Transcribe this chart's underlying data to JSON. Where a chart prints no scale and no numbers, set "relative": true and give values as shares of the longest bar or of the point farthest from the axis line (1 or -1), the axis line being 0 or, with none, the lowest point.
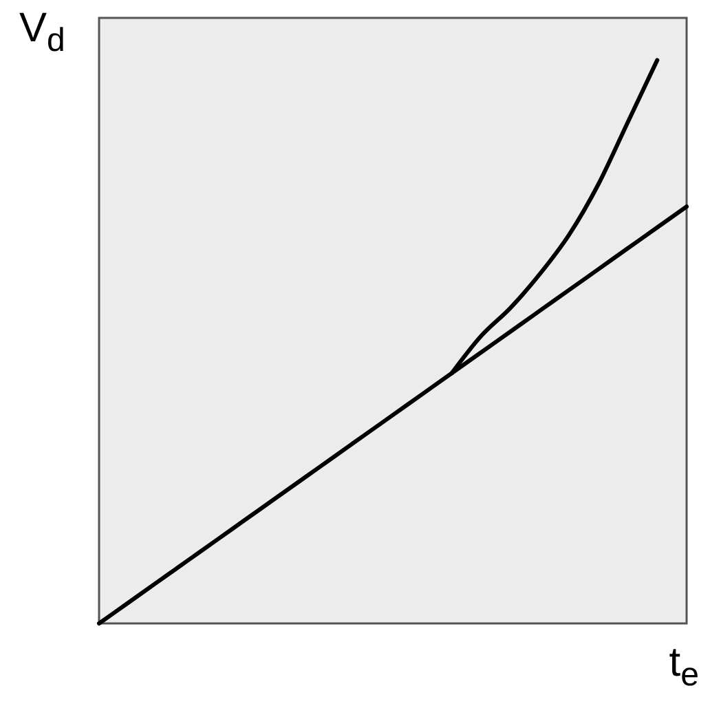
{
  "chart_data": {
    "type": "line",
    "relative": true,
    "xlabel": "t$_{e}$",
    "ylabel": "V$_{d}$",
    "categories": [
      null,
      null,
      null,
      null,
      null,
      null,
      null,
      null,
      null,
      null,
      null,
      null,
      null,
      null,
      null,
      null,
      null,
      null,
      null,
      null,
      null
    ],
    "series": [
      {
        "color": "#000000",
        "values": [
          0,
          0.037,
          0.074,
          0.111,
          0.148,
          0.185,
          0.222,
          0.259,
          0.296,
          0.333,
          0.37,
          0.407,
          0.444,
          0.481,
          0.518,
          0.555,
          0.592,
          0.629,
          0.666,
          0.703,
          0.74
        ]
      },
      {
        "color": "#000000",
        "values": [
          null,
          null,
          null,
          null,
          null,
          null,
          null,
          null,
          null,
          null,
          null,
          null,
          0.444,
          0.51,
          0.56,
          0.62,
          0.69,
          0.78,
          0.89,
          1,
          null
        ]
      }
    ]
  }
}
